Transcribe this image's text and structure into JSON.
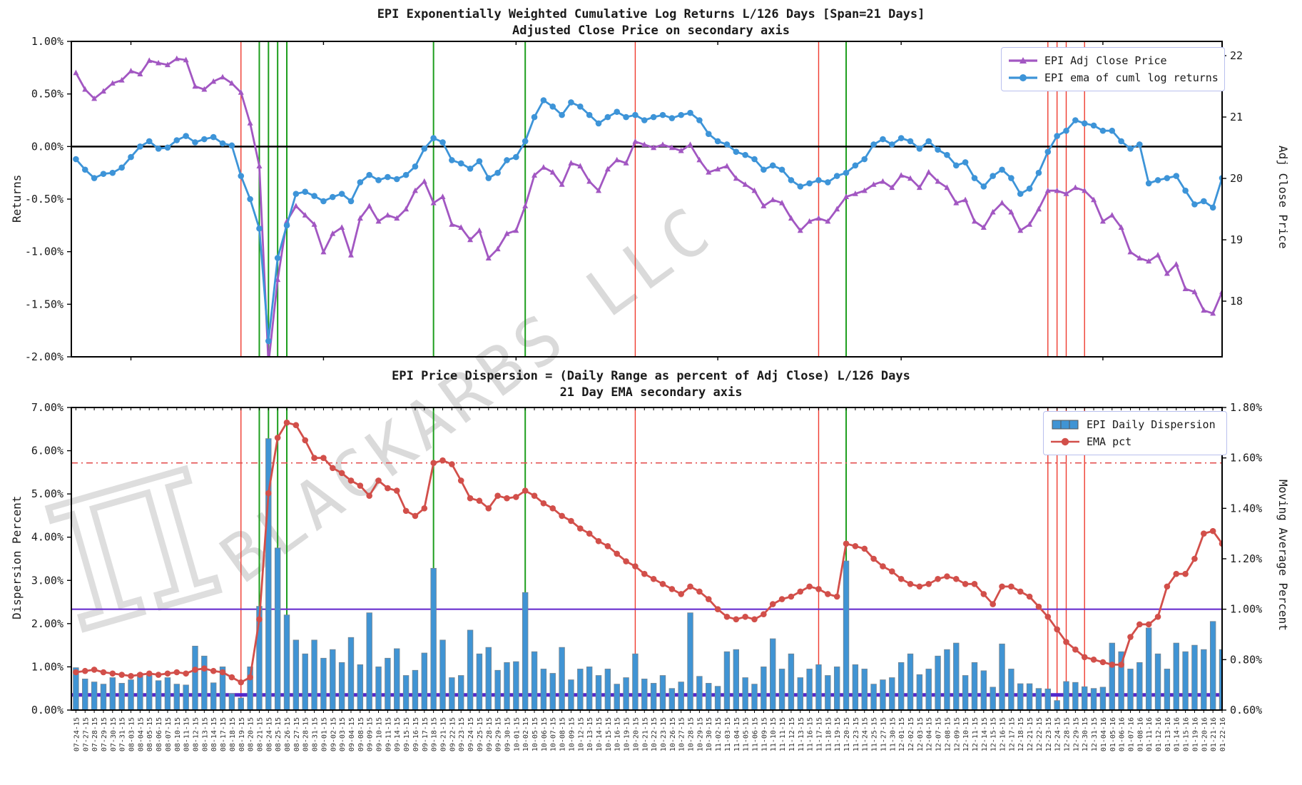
{
  "figure": {
    "top_title_line1": "EPI Exponentially Weighted Cumulative Log Returns L/126 Days [Span=21 Days]",
    "top_title_line2": "Adjusted Close Price on secondary axis",
    "bottom_title_line1": "EPI Price Dispersion = (Daily Range as percent of Adj Close) L/126 Days",
    "bottom_title_line2": "21 Day EMA secondary axis",
    "watermark_symbol": "π",
    "watermark_text": "BLACKARBS LLC"
  },
  "axes": {
    "top_left_label": "Returns",
    "top_right_label": "Adj Close Price",
    "bottom_left_label": "Dispersion Percent",
    "bottom_right_label": "Moving Average Percent"
  },
  "legends": {
    "top_item1": "EPI Adj Close Price",
    "top_item2": "EPI ema of cuml log returns",
    "bottom_item1": "EPI Daily Dispersion",
    "bottom_item2": "EMA pct"
  },
  "colors": {
    "price_line": "#a257c2",
    "ema_returns_line": "#3d94d8",
    "dispersion_bar": "#4094d4",
    "ema_pct_line": "#d24f4a",
    "event_red": "#ef3b2f",
    "event_green": "#1d9e1d",
    "threshold_dashdot_red": "#e35050",
    "threshold_purple": "#6a30cf",
    "threshold_indigo": "#5227cc",
    "zero_line": "#000000"
  },
  "chart_data": [
    {
      "type": "line",
      "title": "EPI Exponentially Weighted Cumulative Log Returns L/126 Days [Span=21 Days]",
      "subtitle": "Adjusted Close Price on secondary axis",
      "xlabel": "",
      "ylabel_left": "Returns",
      "ylabel_right": "Adj Close Price",
      "ylim_left": [
        -2.0,
        1.0
      ],
      "ylim_right": [
        17.1,
        22.2
      ],
      "grid": false,
      "legend_position": "upper right",
      "ytick_labels_left": [
        "1.00%",
        "0.50%",
        "0.00%",
        "-0.50%",
        "-1.00%",
        "-1.50%",
        "-2.00%"
      ],
      "ytick_values_left": [
        1.0,
        0.5,
        0.0,
        -0.5,
        -1.0,
        -1.5,
        -2.0
      ],
      "ytick_labels_right": [
        "22",
        "21",
        "20",
        "19",
        "18"
      ],
      "ytick_values_right": [
        22,
        21,
        20,
        19,
        18
      ],
      "dates": [
        "07-24-15",
        "07-27-15",
        "07-28-15",
        "07-29-15",
        "07-30-15",
        "07-31-15",
        "08-03-15",
        "08-04-15",
        "08-05-15",
        "08-06-15",
        "08-07-15",
        "08-10-15",
        "08-11-15",
        "08-12-15",
        "08-13-15",
        "08-14-15",
        "08-17-15",
        "08-18-15",
        "08-19-15",
        "08-20-15",
        "08-21-15",
        "08-24-15",
        "08-25-15",
        "08-26-15",
        "08-27-15",
        "08-28-15",
        "08-31-15",
        "09-01-15",
        "09-02-15",
        "09-03-15",
        "09-04-15",
        "09-08-15",
        "09-09-15",
        "09-10-15",
        "09-11-15",
        "09-14-15",
        "09-15-15",
        "09-16-15",
        "09-17-15",
        "09-18-15",
        "09-21-15",
        "09-22-15",
        "09-23-15",
        "09-24-15",
        "09-25-15",
        "09-28-15",
        "09-29-15",
        "09-30-15",
        "10-01-15",
        "10-02-15",
        "10-05-15",
        "10-06-15",
        "10-07-15",
        "10-08-15",
        "10-09-15",
        "10-12-15",
        "10-13-15",
        "10-14-15",
        "10-15-15",
        "10-16-15",
        "10-19-15",
        "10-20-15",
        "10-21-15",
        "10-22-15",
        "10-23-15",
        "10-26-15",
        "10-27-15",
        "10-28-15",
        "10-29-15",
        "10-30-15",
        "11-02-15",
        "11-03-15",
        "11-04-15",
        "11-05-15",
        "11-06-15",
        "11-09-15",
        "11-10-15",
        "11-11-15",
        "11-12-15",
        "11-13-15",
        "11-16-15",
        "11-17-15",
        "11-18-15",
        "11-19-15",
        "11-20-15",
        "11-23-15",
        "11-24-15",
        "11-25-15",
        "11-27-15",
        "11-30-15",
        "12-01-15",
        "12-02-15",
        "12-03-15",
        "12-04-15",
        "12-07-15",
        "12-08-15",
        "12-09-15",
        "12-10-15",
        "12-11-15",
        "12-14-15",
        "12-15-15",
        "12-16-15",
        "12-17-15",
        "12-18-15",
        "12-21-15",
        "12-22-15",
        "12-23-15",
        "12-24-15",
        "12-28-15",
        "12-29-15",
        "12-30-15",
        "12-31-15",
        "01-04-16",
        "01-05-16",
        "01-06-16",
        "01-07-16",
        "01-08-16",
        "01-11-16",
        "01-12-16",
        "01-13-16",
        "01-14-16",
        "01-15-16",
        "01-19-16",
        "01-20-16",
        "01-21-16",
        "01-22-16"
      ],
      "series": [
        {
          "name": "EPI Adj Close Price",
          "axis": "right",
          "marker": "triangle",
          "color": "#a257c2",
          "values": [
            21.72,
            21.45,
            21.3,
            21.42,
            21.55,
            21.6,
            21.75,
            21.7,
            21.92,
            21.88,
            21.85,
            21.95,
            21.93,
            21.5,
            21.45,
            21.58,
            21.65,
            21.55,
            21.4,
            20.9,
            20.2,
            16.98,
            18.35,
            19.3,
            19.55,
            19.4,
            19.25,
            18.8,
            19.1,
            19.2,
            18.75,
            19.35,
            19.55,
            19.3,
            19.4,
            19.35,
            19.5,
            19.8,
            19.95,
            19.6,
            19.7,
            19.25,
            19.2,
            19.0,
            19.15,
            18.7,
            18.85,
            19.1,
            19.15,
            19.55,
            20.05,
            20.18,
            20.1,
            19.9,
            20.25,
            20.2,
            19.95,
            19.8,
            20.15,
            20.3,
            20.25,
            20.6,
            20.55,
            20.5,
            20.55,
            20.5,
            20.45,
            20.55,
            20.3,
            20.1,
            20.15,
            20.2,
            20.0,
            19.9,
            19.8,
            19.55,
            19.65,
            19.6,
            19.35,
            19.15,
            19.3,
            19.35,
            19.3,
            19.5,
            19.7,
            19.75,
            19.8,
            19.9,
            19.95,
            19.85,
            20.05,
            20.0,
            19.85,
            20.1,
            19.95,
            19.85,
            19.6,
            19.65,
            19.3,
            19.2,
            19.45,
            19.6,
            19.45,
            19.15,
            19.25,
            19.5,
            19.8,
            19.8,
            19.75,
            19.85,
            19.8,
            19.65,
            19.3,
            19.4,
            19.2,
            18.8,
            18.7,
            18.65,
            18.75,
            18.45,
            18.6,
            18.2,
            18.15,
            17.85,
            17.8,
            18.15
          ]
        },
        {
          "name": "EPI ema of cuml log returns",
          "axis": "left",
          "marker": "circle",
          "color": "#3d94d8",
          "values": [
            -0.12,
            -0.22,
            -0.3,
            -0.26,
            -0.25,
            -0.2,
            -0.1,
            0.0,
            0.05,
            -0.02,
            -0.01,
            0.06,
            0.1,
            0.04,
            0.07,
            0.09,
            0.03,
            0.01,
            -0.28,
            -0.5,
            -0.78,
            -1.85,
            -1.06,
            -0.75,
            -0.45,
            -0.43,
            -0.47,
            -0.52,
            -0.48,
            -0.45,
            -0.52,
            -0.34,
            -0.27,
            -0.32,
            -0.29,
            -0.31,
            -0.27,
            -0.19,
            -0.02,
            0.08,
            0.04,
            -0.13,
            -0.16,
            -0.21,
            -0.14,
            -0.3,
            -0.25,
            -0.13,
            -0.1,
            0.05,
            0.28,
            0.44,
            0.38,
            0.3,
            0.42,
            0.38,
            0.3,
            0.22,
            0.28,
            0.33,
            0.28,
            0.3,
            0.25,
            0.28,
            0.3,
            0.27,
            0.3,
            0.32,
            0.25,
            0.12,
            0.05,
            0.02,
            -0.05,
            -0.08,
            -0.12,
            -0.22,
            -0.18,
            -0.22,
            -0.32,
            -0.38,
            -0.35,
            -0.32,
            -0.34,
            -0.28,
            -0.25,
            -0.18,
            -0.12,
            0.02,
            0.07,
            0.02,
            0.08,
            0.05,
            -0.02,
            0.05,
            -0.03,
            -0.08,
            -0.18,
            -0.15,
            -0.3,
            -0.38,
            -0.28,
            -0.22,
            -0.3,
            -0.45,
            -0.4,
            -0.25,
            -0.05,
            0.1,
            0.15,
            0.25,
            0.22,
            0.2,
            0.15,
            0.15,
            0.05,
            -0.02,
            0.02,
            -0.35,
            -0.32,
            -0.3,
            -0.28,
            -0.42,
            -0.55,
            -0.52,
            -0.58,
            -0.3
          ]
        }
      ],
      "hlines": [
        {
          "axis": "left",
          "value": 0.0,
          "color": "#000000",
          "style": "solid",
          "width": 2.5
        }
      ],
      "vlines_red": [
        "08-19-15",
        "10-20-15",
        "11-17-15",
        "12-23-15",
        "12-24-15",
        "12-28-15",
        "12-30-15"
      ],
      "vlines_green": [
        "08-21-15",
        "08-24-15",
        "08-25-15",
        "08-26-15",
        "09-18-15",
        "10-02-15",
        "11-20-15"
      ]
    },
    {
      "type": "bar",
      "title": "EPI Price Dispersion = (Daily Range as percent of Adj Close) L/126 Days",
      "subtitle": "21 Day EMA secondary axis",
      "xlabel": "",
      "ylabel_left": "Dispersion Percent",
      "ylabel_right": "Moving Average Percent",
      "ylim_left": [
        0.0,
        7.0
      ],
      "ylim_right": [
        0.6,
        1.8
      ],
      "grid": false,
      "legend_position": "upper right",
      "ytick_labels_left": [
        "7.00%",
        "6.00%",
        "5.00%",
        "4.00%",
        "3.00%",
        "2.00%",
        "1.00%",
        "0.00%"
      ],
      "ytick_values_left": [
        7,
        6,
        5,
        4,
        3,
        2,
        1,
        0
      ],
      "ytick_labels_right": [
        "1.80%",
        "1.60%",
        "1.40%",
        "1.20%",
        "1.00%",
        "0.80%",
        "0.60%"
      ],
      "ytick_values_right": [
        1.8,
        1.6,
        1.4,
        1.2,
        1.0,
        0.8,
        0.6
      ],
      "dates": [
        "07-24-15",
        "07-27-15",
        "07-28-15",
        "07-29-15",
        "07-30-15",
        "07-31-15",
        "08-03-15",
        "08-04-15",
        "08-05-15",
        "08-06-15",
        "08-07-15",
        "08-10-15",
        "08-11-15",
        "08-12-15",
        "08-13-15",
        "08-14-15",
        "08-17-15",
        "08-18-15",
        "08-19-15",
        "08-20-15",
        "08-21-15",
        "08-24-15",
        "08-25-15",
        "08-26-15",
        "08-27-15",
        "08-28-15",
        "08-31-15",
        "09-01-15",
        "09-02-15",
        "09-03-15",
        "09-04-15",
        "09-08-15",
        "09-09-15",
        "09-10-15",
        "09-11-15",
        "09-14-15",
        "09-15-15",
        "09-16-15",
        "09-17-15",
        "09-18-15",
        "09-21-15",
        "09-22-15",
        "09-23-15",
        "09-24-15",
        "09-25-15",
        "09-28-15",
        "09-29-15",
        "09-30-15",
        "10-01-15",
        "10-02-15",
        "10-05-15",
        "10-06-15",
        "10-07-15",
        "10-08-15",
        "10-09-15",
        "10-12-15",
        "10-13-15",
        "10-14-15",
        "10-15-15",
        "10-16-15",
        "10-19-15",
        "10-20-15",
        "10-21-15",
        "10-22-15",
        "10-23-15",
        "10-26-15",
        "10-27-15",
        "10-28-15",
        "10-29-15",
        "10-30-15",
        "11-02-15",
        "11-03-15",
        "11-04-15",
        "11-05-15",
        "11-06-15",
        "11-09-15",
        "11-10-15",
        "11-11-15",
        "11-12-15",
        "11-13-15",
        "11-16-15",
        "11-17-15",
        "11-18-15",
        "11-19-15",
        "11-20-15",
        "11-23-15",
        "11-24-15",
        "11-25-15",
        "11-27-15",
        "11-30-15",
        "12-01-15",
        "12-02-15",
        "12-03-15",
        "12-04-15",
        "12-07-15",
        "12-08-15",
        "12-09-15",
        "12-10-15",
        "12-11-15",
        "12-14-15",
        "12-15-15",
        "12-16-15",
        "12-17-15",
        "12-18-15",
        "12-21-15",
        "12-22-15",
        "12-23-15",
        "12-24-15",
        "12-28-15",
        "12-29-15",
        "12-30-15",
        "12-31-15",
        "01-04-16",
        "01-05-16",
        "01-06-16",
        "01-07-16",
        "01-08-16",
        "01-11-16",
        "01-12-16",
        "01-13-16",
        "01-14-16",
        "01-15-16",
        "01-19-16",
        "01-20-16",
        "01-21-16",
        "01-22-16"
      ],
      "series": [
        {
          "name": "EPI Daily Dispersion",
          "axis": "left",
          "kind": "bar",
          "color": "#4094d4",
          "values": [
            0.98,
            0.72,
            0.65,
            0.6,
            0.75,
            0.62,
            0.7,
            0.85,
            0.8,
            0.68,
            0.75,
            0.6,
            0.58,
            1.48,
            1.25,
            0.63,
            1.0,
            0.38,
            0.28,
            1.0,
            2.4,
            6.28,
            3.75,
            2.2,
            1.62,
            1.3,
            1.62,
            1.2,
            1.4,
            1.1,
            1.68,
            1.05,
            2.25,
            1.0,
            1.2,
            1.42,
            0.8,
            0.92,
            1.32,
            3.28,
            1.62,
            0.75,
            0.8,
            1.85,
            1.3,
            1.45,
            0.92,
            1.1,
            1.12,
            2.72,
            1.35,
            0.95,
            0.85,
            1.45,
            0.7,
            0.95,
            1.0,
            0.8,
            0.95,
            0.6,
            0.75,
            1.3,
            0.72,
            0.62,
            0.8,
            0.5,
            0.65,
            2.25,
            0.78,
            0.62,
            0.55,
            1.35,
            1.4,
            0.75,
            0.6,
            1.0,
            1.65,
            0.95,
            1.3,
            0.75,
            0.95,
            1.05,
            0.8,
            1.0,
            3.45,
            1.05,
            0.95,
            0.6,
            0.7,
            0.75,
            1.1,
            1.3,
            0.82,
            0.95,
            1.25,
            1.4,
            1.55,
            0.8,
            1.1,
            0.91,
            0.53,
            1.53,
            0.95,
            0.61,
            0.61,
            0.5,
            0.49,
            0.22,
            0.66,
            0.64,
            0.54,
            0.5,
            0.53,
            1.55,
            1.35,
            0.95,
            1.1,
            1.9,
            1.3,
            0.95,
            1.55,
            1.35,
            1.5,
            1.4,
            2.05,
            1.4
          ]
        },
        {
          "name": "EMA pct",
          "axis": "right",
          "kind": "line",
          "marker": "circle",
          "color": "#d24f4a",
          "values": [
            0.75,
            0.755,
            0.76,
            0.75,
            0.745,
            0.74,
            0.735,
            0.74,
            0.745,
            0.74,
            0.745,
            0.75,
            0.745,
            0.76,
            0.765,
            0.755,
            0.75,
            0.73,
            0.71,
            0.73,
            0.96,
            1.46,
            1.68,
            1.74,
            1.73,
            1.67,
            1.6,
            1.6,
            1.56,
            1.54,
            1.51,
            1.49,
            1.45,
            1.51,
            1.48,
            1.47,
            1.39,
            1.37,
            1.4,
            1.58,
            1.59,
            1.575,
            1.51,
            1.44,
            1.43,
            1.4,
            1.45,
            1.44,
            1.445,
            1.47,
            1.45,
            1.42,
            1.4,
            1.37,
            1.35,
            1.32,
            1.3,
            1.27,
            1.25,
            1.22,
            1.19,
            1.17,
            1.14,
            1.12,
            1.1,
            1.08,
            1.06,
            1.09,
            1.07,
            1.04,
            1.0,
            0.97,
            0.96,
            0.97,
            0.96,
            0.98,
            1.02,
            1.04,
            1.05,
            1.07,
            1.09,
            1.08,
            1.06,
            1.05,
            1.26,
            1.25,
            1.24,
            1.2,
            1.17,
            1.15,
            1.12,
            1.1,
            1.09,
            1.1,
            1.12,
            1.13,
            1.12,
            1.1,
            1.1,
            1.06,
            1.02,
            1.09,
            1.09,
            1.07,
            1.05,
            1.01,
            0.97,
            0.92,
            0.87,
            0.84,
            0.81,
            0.8,
            0.79,
            0.78,
            0.78,
            0.89,
            0.94,
            0.94,
            0.97,
            1.09,
            1.14,
            1.14,
            1.2,
            1.3,
            1.31,
            1.26
          ]
        }
      ],
      "hlines": [
        {
          "axis": "right",
          "value": 1.58,
          "color": "#e35050",
          "style": "dashdot",
          "width": 1.6
        },
        {
          "axis": "right",
          "value": 1.0,
          "color": "#6a30cf",
          "style": "solid",
          "width": 2.2
        },
        {
          "axis": "right",
          "value": 0.66,
          "color": "#5227cc",
          "style": "solid",
          "width": 5.0
        }
      ],
      "vlines_red": [
        "08-19-15",
        "10-20-15",
        "11-17-15",
        "12-23-15",
        "12-24-15",
        "12-28-15",
        "12-30-15"
      ],
      "vlines_green": [
        "08-21-15",
        "08-24-15",
        "08-25-15",
        "08-26-15",
        "09-18-15",
        "10-02-15",
        "11-20-15"
      ]
    }
  ]
}
